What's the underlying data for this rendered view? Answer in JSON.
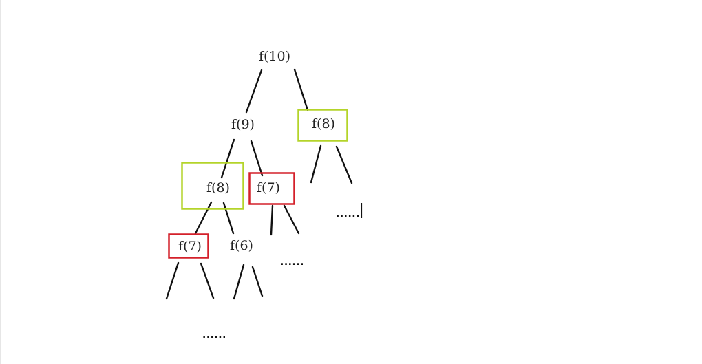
{
  "colors": {
    "green_box": "#b4d42a",
    "red_box": "#d4202a",
    "edge": "#111111",
    "text": "#222222"
  },
  "nodes": {
    "root": "f(10)",
    "l1_left": "f(9)",
    "l1_right": "f(8)",
    "l2_left": "f(8)",
    "l2_right": "f(7)",
    "l3_left": "f(7)",
    "l3_right": "f(6)"
  },
  "ellipses": {
    "right_branch": "......",
    "mid_branch": "......",
    "bottom": "......"
  }
}
